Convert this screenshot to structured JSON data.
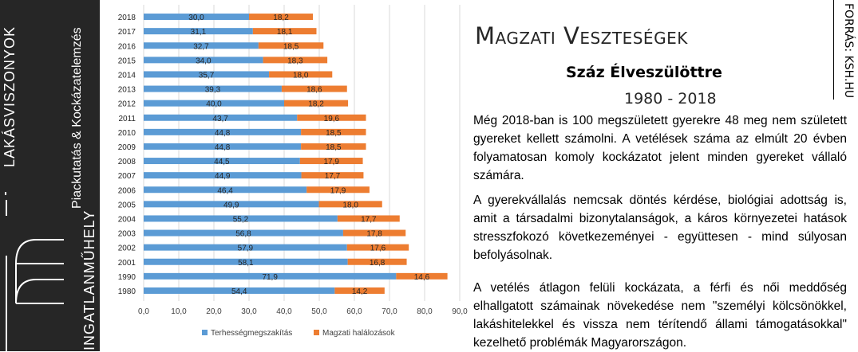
{
  "branding": {
    "line1": "LAKÁSVISZONYOK",
    "line2": "INGATLANMŰHELY",
    "line3": "Piackutatás & Kockázatelemzés",
    "logo": "i m"
  },
  "header": {
    "title": "Magzati Veszteségek",
    "subtitle": "Száz Élveszülöttre",
    "years": "1980 - 2018"
  },
  "source": "FORRÁS: KSH.HU",
  "paragraphs": [
    "Még 2018-ban is 100 megszületett gyerekre 48 meg nem született gyereket kellett számolni. A vetélések száma az elmúlt 20 évben folyamatosan komoly kockázatot jelent minden gyereket vállaló számára.",
    "A gyerekvállalás nemcsak döntés kérdése, biológiai adottság is, amit a társadalmi bizonytalanságok, a káros környezetei hatások stresszfokozó következeményei - együttesen - mind súlyosan befolyásolnak.",
    "A vetélés átlagon felüli kockázata, a férfi és női meddőség elhallgatott számainak növekedése nem \"személyi kölcsönökkel, lakáshitelekkel és vissza nem térítendő állami támogatásokkal\" kezelhető problémák Magyarországon."
  ],
  "chart_data": {
    "type": "bar",
    "orientation": "horizontal",
    "stacked": true,
    "categories": [
      "2018",
      "2017",
      "2016",
      "2015",
      "2014",
      "2013",
      "2012",
      "2011",
      "2010",
      "2009",
      "2008",
      "2007",
      "2006",
      "2005",
      "2004",
      "2003",
      "2002",
      "2001",
      "1990",
      "1980"
    ],
    "series": [
      {
        "name": "Terhességmegszakítás",
        "color": "#5B9BD5",
        "values": [
          30.0,
          31.1,
          32.7,
          34.0,
          35.7,
          39.3,
          40.0,
          43.7,
          44.8,
          44.8,
          44.5,
          44.9,
          46.4,
          49.9,
          55.2,
          56.8,
          57.9,
          58.1,
          71.9,
          54.4
        ],
        "labels": [
          "30,0",
          "31,1",
          "32,7",
          "34,0",
          "35,7",
          "39,3",
          "40,0",
          "43,7",
          "44,8",
          "44,8",
          "44,5",
          "44,9",
          "46,4",
          "49,9",
          "55,2",
          "56,8",
          "57,9",
          "58,1",
          "71,9",
          "54,4"
        ]
      },
      {
        "name": "Magzati halálozások",
        "color": "#ED7D31",
        "values": [
          18.2,
          18.1,
          18.5,
          18.3,
          18.0,
          18.6,
          18.2,
          19.6,
          18.5,
          18.5,
          17.9,
          17.7,
          17.9,
          18.0,
          17.7,
          17.8,
          17.6,
          16.8,
          14.6,
          14.2
        ],
        "labels": [
          "18,2",
          "18,1",
          "18,5",
          "18,3",
          "18,0",
          "18,6",
          "18,2",
          "19,6",
          "18,5",
          "18,5",
          "17,9",
          "17,7",
          "17,9",
          "18,0",
          "17,7",
          "17,8",
          "17,6",
          "16,8",
          "14,6",
          "14,2"
        ]
      }
    ],
    "xlim": [
      0,
      90
    ],
    "xticks": [
      "0,0",
      "10,0",
      "20,0",
      "30,0",
      "40,0",
      "50,0",
      "60,0",
      "70,0",
      "80,0",
      "90,0"
    ],
    "grid": true,
    "legend_position": "bottom"
  }
}
